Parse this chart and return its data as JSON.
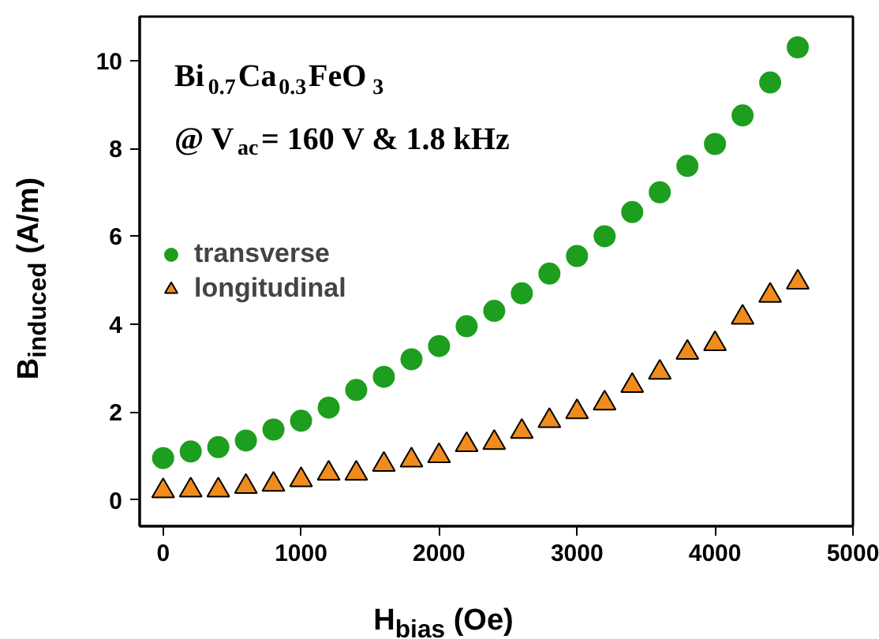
{
  "chart_data": {
    "type": "scatter",
    "xlabel": "H$_{bias}$ (Oe)",
    "ylabel": "B$_{induced}$ (A/m)",
    "annotations": [
      "Bi$_{0.7}$Ca$_{0.3}$FeO$_{3}$",
      "@ V$_{ac}$= 160 V & 1.8 kHz"
    ],
    "x": [
      0,
      200,
      400,
      600,
      800,
      1000,
      1200,
      1400,
      1600,
      1800,
      2000,
      2200,
      2400,
      2600,
      2800,
      3000,
      3200,
      3400,
      3600,
      3800,
      4000,
      4200,
      4400,
      4600
    ],
    "series": [
      {
        "name": "transverse",
        "color": "#1e9e1e",
        "marker": "circle",
        "values": [
          0.95,
          1.1,
          1.2,
          1.35,
          1.6,
          1.8,
          2.1,
          2.5,
          2.8,
          3.2,
          3.5,
          3.95,
          4.3,
          4.7,
          5.15,
          5.55,
          6.0,
          6.55,
          7.0,
          7.6,
          8.1,
          8.75,
          9.5,
          10.3
        ]
      },
      {
        "name": "longitudinal",
        "color": "#f08c1e",
        "marker": "triangle",
        "values": [
          0.2,
          0.22,
          0.22,
          0.3,
          0.35,
          0.45,
          0.6,
          0.6,
          0.8,
          0.9,
          1.0,
          1.25,
          1.3,
          1.55,
          1.8,
          2.0,
          2.2,
          2.6,
          2.9,
          3.35,
          3.55,
          4.15,
          4.65,
          4.95
        ]
      }
    ],
    "xlim": [
      -170,
      5000
    ],
    "xticks": [
      0,
      1000,
      2000,
      3000,
      4000,
      5000
    ],
    "ylim": [
      -0.6,
      11
    ],
    "yticks": [
      0,
      2,
      4,
      6,
      8,
      10
    ],
    "grid": false,
    "legend": "left"
  }
}
